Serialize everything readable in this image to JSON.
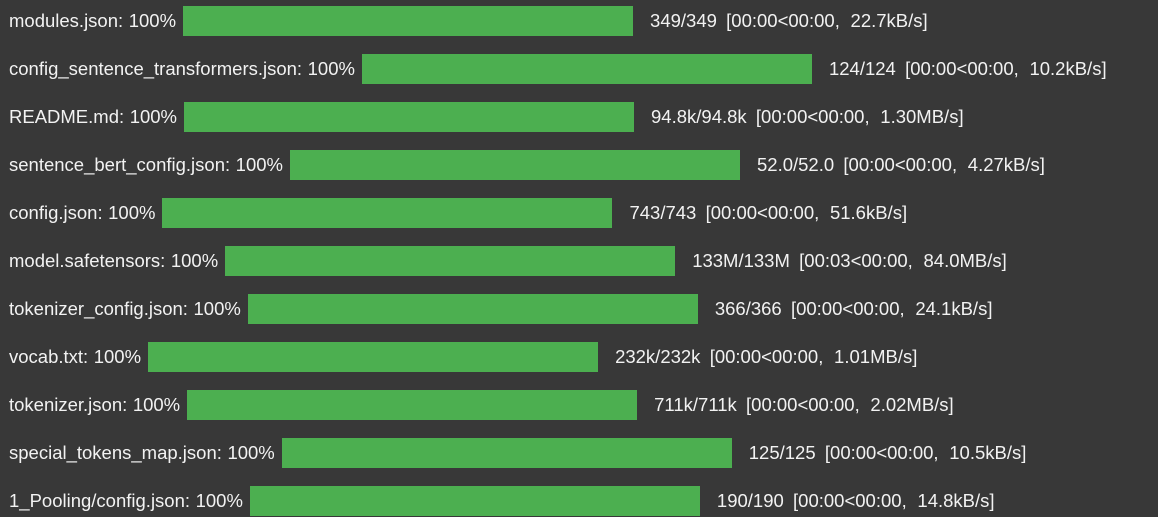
{
  "downloads": [
    {
      "name": "modules.json:",
      "percent": "100%",
      "progress": 1.0,
      "count": "349/349",
      "time": "[00:00<00:00,",
      "rate": " 22.7kB/s]"
    },
    {
      "name": "config_sentence_transformers.json:",
      "percent": "100%",
      "progress": 1.0,
      "count": "124/124",
      "time": "[00:00<00:00,",
      "rate": " 10.2kB/s]"
    },
    {
      "name": "README.md:",
      "percent": "100%",
      "progress": 1.0,
      "count": "94.8k/94.8k",
      "time": "[00:00<00:00,",
      "rate": " 1.30MB/s]"
    },
    {
      "name": "sentence_bert_config.json:",
      "percent": "100%",
      "progress": 1.0,
      "count": "52.0/52.0",
      "time": "[00:00<00:00,",
      "rate": " 4.27kB/s]"
    },
    {
      "name": "config.json:",
      "percent": "100%",
      "progress": 1.0,
      "count": "743/743",
      "time": "[00:00<00:00,",
      "rate": " 51.6kB/s]"
    },
    {
      "name": "model.safetensors:",
      "percent": "100%",
      "progress": 1.0,
      "count": "133M/133M",
      "time": "[00:03<00:00,",
      "rate": " 84.0MB/s]"
    },
    {
      "name": "tokenizer_config.json:",
      "percent": "100%",
      "progress": 1.0,
      "count": "366/366",
      "time": "[00:00<00:00,",
      "rate": " 24.1kB/s]"
    },
    {
      "name": "vocab.txt:",
      "percent": "100%",
      "progress": 1.0,
      "count": "232k/232k",
      "time": "[00:00<00:00,",
      "rate": " 1.01MB/s]"
    },
    {
      "name": "tokenizer.json:",
      "percent": "100%",
      "progress": 1.0,
      "count": "711k/711k",
      "time": "[00:00<00:00,",
      "rate": " 2.02MB/s]"
    },
    {
      "name": "special_tokens_map.json:",
      "percent": "100%",
      "progress": 1.0,
      "count": "125/125",
      "time": "[00:00<00:00,",
      "rate": " 10.5kB/s]"
    },
    {
      "name": "1_Pooling/config.json:",
      "percent": "100%",
      "progress": 1.0,
      "count": "190/190",
      "time": "[00:00<00:00,",
      "rate": " 14.8kB/s]"
    }
  ],
  "colors": {
    "background": "#383838",
    "bar_fill": "#4caf50",
    "text": "#f2f2f2"
  }
}
